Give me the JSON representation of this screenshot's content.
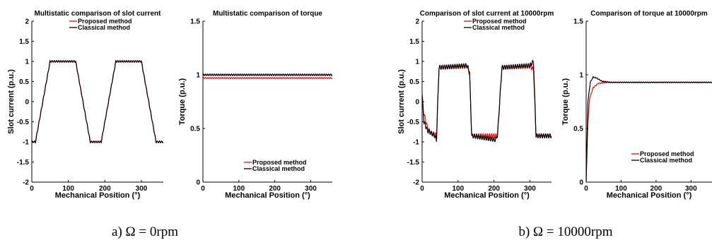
{
  "colors": {
    "proposed": "#ff0000",
    "classical": "#000000"
  },
  "captions": [
    {
      "label": "a) Ω = 0rpm"
    },
    {
      "label": "b) Ω = 10000rpm"
    }
  ],
  "chart_data": [
    {
      "type": "line",
      "title": "Multistatic comparison of slot current",
      "xlabel": "Mechanical Position (°)",
      "ylabel": "Slot current (p.u.)",
      "xlim": [
        0,
        360
      ],
      "ylim": [
        -2,
        2
      ],
      "xticks": [
        "0",
        "100",
        "200",
        "300"
      ],
      "yticks": [
        "-2",
        "-1.5",
        "-1",
        "-0.5",
        "0",
        "0.5",
        "1",
        "1.5",
        "2"
      ],
      "legend": {
        "position": "top-right",
        "entries": [
          "Proposed method",
          "Classical method"
        ]
      },
      "series": [
        {
          "name": "Proposed method",
          "waveform": "trapezoid",
          "flat": 1.0,
          "ripple": 0.02,
          "points": [
            [
              0,
              -1
            ],
            [
              10,
              -1
            ],
            [
              30,
              0
            ],
            [
              50,
              1
            ],
            [
              120,
              1
            ],
            [
              140,
              0
            ],
            [
              160,
              -1
            ],
            [
              190,
              -1
            ],
            [
              210,
              0
            ],
            [
              230,
              1
            ],
            [
              300,
              1
            ],
            [
              320,
              0
            ],
            [
              340,
              -1
            ],
            [
              360,
              -1
            ]
          ]
        },
        {
          "name": "Classical method",
          "waveform": "trapezoid",
          "flat": 1.0,
          "ripple": 0.02,
          "points": [
            [
              0,
              -1
            ],
            [
              10,
              -1
            ],
            [
              30,
              0
            ],
            [
              50,
              1
            ],
            [
              120,
              1
            ],
            [
              140,
              0
            ],
            [
              160,
              -1
            ],
            [
              190,
              -1
            ],
            [
              210,
              0
            ],
            [
              230,
              1
            ],
            [
              300,
              1
            ],
            [
              320,
              0
            ],
            [
              340,
              -1
            ],
            [
              360,
              -1
            ]
          ]
        }
      ]
    },
    {
      "type": "line",
      "title": "Multistatic comparison of torque",
      "xlabel": "Mechanical Position (°)",
      "ylabel": "Torque (p.u.)",
      "xlim": [
        0,
        360
      ],
      "ylim": [
        0,
        1.5
      ],
      "xticks": [
        "0",
        "100",
        "200",
        "300"
      ],
      "yticks": [
        "0",
        "0.5",
        "1",
        "1.5"
      ],
      "legend": {
        "position": "bottom-right",
        "entries": [
          "Proposed method",
          "Classical method"
        ]
      },
      "series": [
        {
          "name": "Proposed method",
          "waveform": "constant",
          "ripple": 0.005,
          "points": [
            [
              0,
              0.97
            ],
            [
              360,
              0.97
            ]
          ]
        },
        {
          "name": "Classical method",
          "waveform": "constant",
          "ripple": 0.008,
          "points": [
            [
              0,
              1.0
            ],
            [
              360,
              1.0
            ]
          ]
        }
      ]
    },
    {
      "type": "line",
      "title": "Comparison of slot current at 10000rpm",
      "xlabel": "Mechanical Position (°)",
      "ylabel": "Slot current (p.u.)",
      "xlim": [
        0,
        360
      ],
      "ylim": [
        -2,
        2
      ],
      "xticks": [
        "0",
        "100",
        "200",
        "300"
      ],
      "yticks": [
        "-2",
        "-1.5",
        "-1",
        "-0.5",
        "0",
        "0.5",
        "1",
        "1.5",
        "2"
      ],
      "legend": {
        "position": "top-right",
        "entries": [
          "Proposed method",
          "Classical method"
        ]
      },
      "series": [
        {
          "name": "Proposed method",
          "waveform": "trapezoid",
          "ripple": 0.05,
          "points": [
            [
              0,
              0.05
            ],
            [
              5,
              -0.3
            ],
            [
              15,
              -0.65
            ],
            [
              25,
              -0.8
            ],
            [
              35,
              -0.8
            ],
            [
              40,
              -0.85
            ],
            [
              47,
              0.85
            ],
            [
              125,
              0.88
            ],
            [
              132,
              0.7
            ],
            [
              138,
              -0.85
            ],
            [
              210,
              -0.85
            ],
            [
              222,
              0.85
            ],
            [
              300,
              0.88
            ],
            [
              310,
              0.8
            ],
            [
              317,
              -0.85
            ],
            [
              360,
              -0.85
            ]
          ]
        },
        {
          "name": "Classical method",
          "waveform": "trapezoid",
          "ripple": 0.05,
          "points": [
            [
              0,
              0.18
            ],
            [
              5,
              -0.5
            ],
            [
              15,
              -0.72
            ],
            [
              25,
              -0.78
            ],
            [
              35,
              -0.85
            ],
            [
              40,
              -0.95
            ],
            [
              47,
              0.85
            ],
            [
              125,
              0.9
            ],
            [
              132,
              0.75
            ],
            [
              138,
              -0.85
            ],
            [
              205,
              -0.95
            ],
            [
              210,
              -0.8
            ],
            [
              222,
              0.85
            ],
            [
              300,
              0.9
            ],
            [
              310,
              1.0
            ],
            [
              317,
              -0.85
            ],
            [
              360,
              -0.85
            ]
          ]
        }
      ]
    },
    {
      "type": "line",
      "title": "Comparison of torque at 10000rpm",
      "xlabel": "Mechanical Position (°)",
      "ylabel": "Torque (p.u.)",
      "xlim": [
        0,
        360
      ],
      "ylim": [
        0,
        1.5
      ],
      "xticks": [
        "0",
        "100",
        "200",
        "300"
      ],
      "yticks": [
        "0",
        "0.5",
        "1",
        "1.5"
      ],
      "legend": {
        "position": "bottom-right",
        "entries": [
          "Proposed method",
          "Classical method"
        ]
      },
      "series": [
        {
          "name": "Proposed method",
          "waveform": "step-response",
          "ripple": 0.004,
          "points": [
            [
              0,
              0
            ],
            [
              5,
              0.55
            ],
            [
              10,
              0.78
            ],
            [
              20,
              0.88
            ],
            [
              35,
              0.92
            ],
            [
              60,
              0.93
            ],
            [
              360,
              0.93
            ]
          ]
        },
        {
          "name": "Classical method",
          "waveform": "step-response",
          "ripple": 0.004,
          "points": [
            [
              0,
              0
            ],
            [
              5,
              0.75
            ],
            [
              12,
              0.93
            ],
            [
              20,
              0.98
            ],
            [
              30,
              0.97
            ],
            [
              45,
              0.94
            ],
            [
              70,
              0.93
            ],
            [
              360,
              0.93
            ]
          ]
        }
      ]
    }
  ]
}
